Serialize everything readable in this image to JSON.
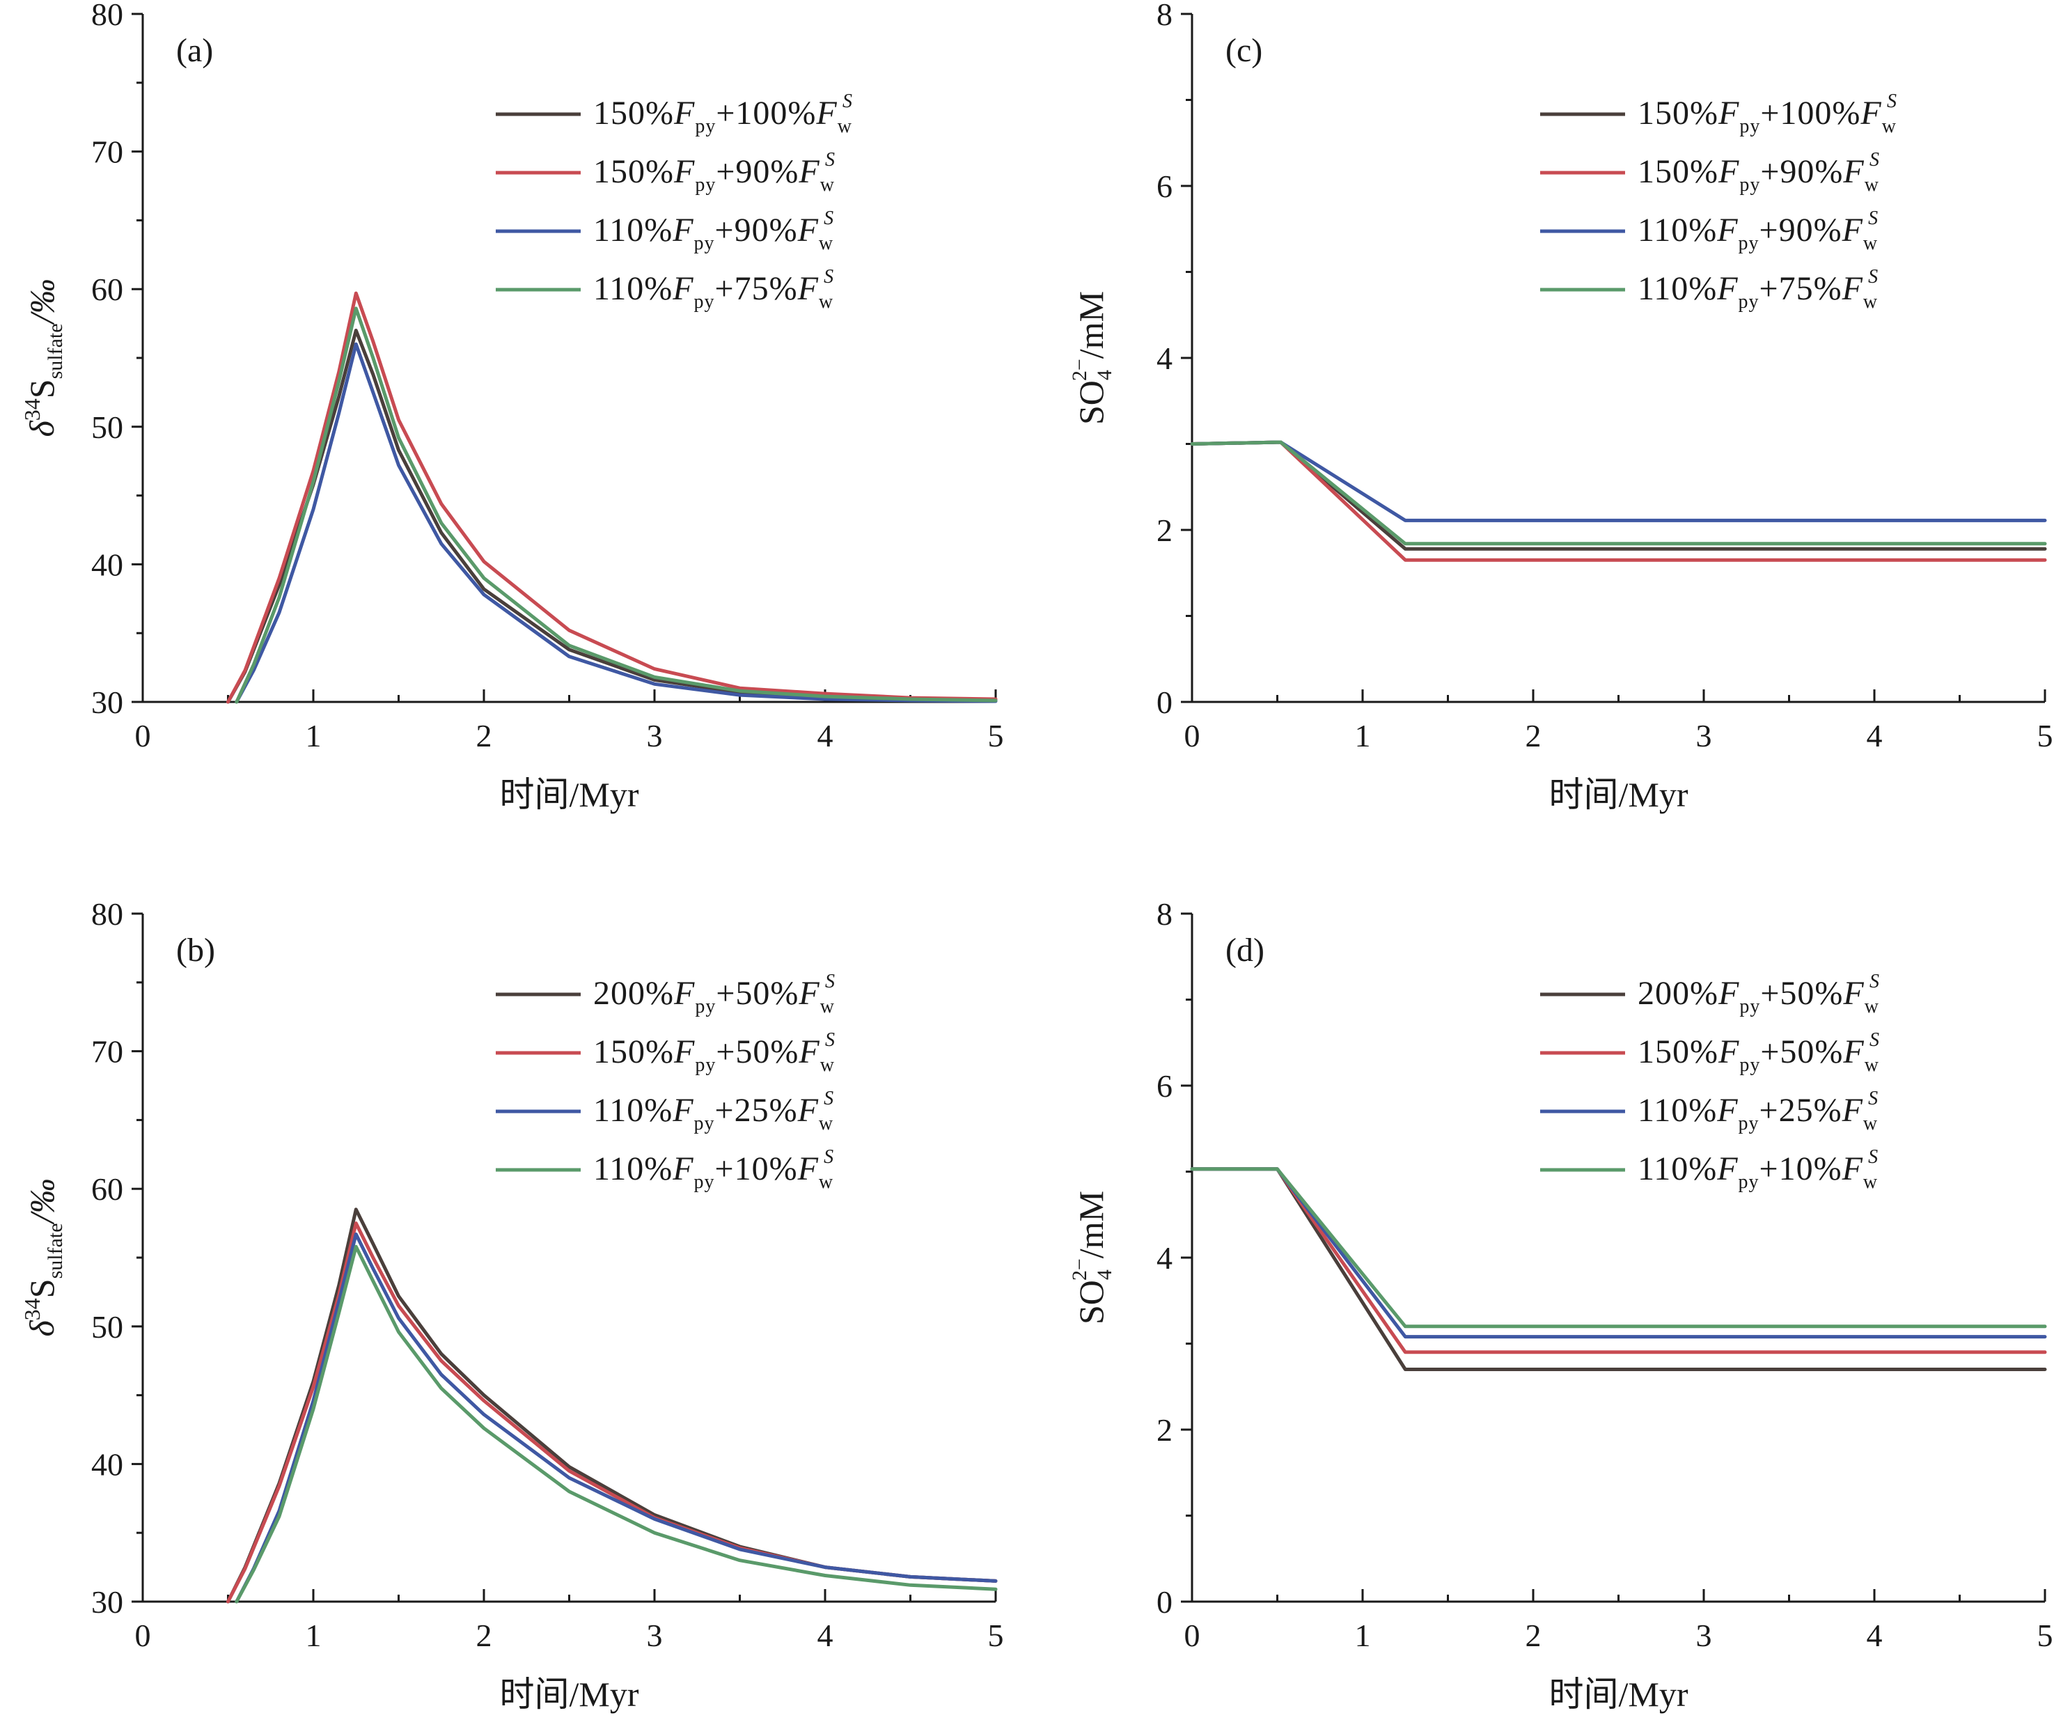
{
  "colors": {
    "black": "#4a3f3b",
    "red": "#c84b52",
    "blue": "#3f58a3",
    "green": "#5a9a6a"
  },
  "chart_data": [
    {
      "id": "a",
      "type": "line",
      "panel_label": "(a)",
      "xlabel": "时间/Myr",
      "ylabel": {
        "base": "δ",
        "sup": "34",
        "main": "S",
        "sub": "sulfate",
        "tail": "/‰"
      },
      "xlim": [
        0,
        5
      ],
      "ylim": [
        30,
        80
      ],
      "xticks": [
        0,
        1,
        2,
        3,
        4,
        5
      ],
      "yticks": [
        30,
        40,
        50,
        60,
        70,
        80
      ],
      "legend_position": "top-right",
      "series": [
        {
          "name": "150%Fpy+100%FwS",
          "legend": {
            "a": "150%",
            "b": "+100%"
          },
          "color": "#4a3f3b",
          "x": [
            0.5,
            0.6,
            0.8,
            1.0,
            1.15,
            1.25,
            1.35,
            1.5,
            1.75,
            2.0,
            2.5,
            3.0,
            3.5,
            4.0,
            4.5,
            5.0
          ],
          "y": [
            30,
            32.2,
            38.5,
            45.8,
            52.2,
            57.0,
            53.8,
            48.3,
            42.3,
            38.2,
            33.8,
            31.6,
            30.7,
            30.3,
            30.15,
            30.1
          ]
        },
        {
          "name": "150%Fpy+90%FwS",
          "legend": {
            "a": "150%",
            "b": "+90%"
          },
          "color": "#c84b52",
          "x": [
            0.5,
            0.6,
            0.8,
            1.0,
            1.15,
            1.25,
            1.35,
            1.5,
            1.75,
            2.0,
            2.5,
            3.0,
            3.5,
            4.0,
            4.5,
            5.0
          ],
          "y": [
            30,
            32.3,
            39.0,
            46.8,
            54.0,
            59.7,
            56.2,
            50.5,
            44.4,
            40.2,
            35.2,
            32.4,
            31.0,
            30.6,
            30.3,
            30.2
          ]
        },
        {
          "name": "110%Fpy+90%FwS",
          "legend": {
            "a": "110%",
            "b": "+90%"
          },
          "color": "#3f58a3",
          "x": [
            0.55,
            0.65,
            0.8,
            1.0,
            1.15,
            1.25,
            1.35,
            1.5,
            1.75,
            2.0,
            2.5,
            3.0,
            3.5,
            4.0,
            4.5,
            5.0
          ],
          "y": [
            30,
            32.3,
            36.5,
            44.0,
            51.0,
            56.0,
            52.5,
            47.2,
            41.5,
            37.8,
            33.3,
            31.3,
            30.5,
            30.2,
            30.1,
            30.05
          ]
        },
        {
          "name": "110%Fpy+75%FwS",
          "legend": {
            "a": "110%",
            "b": "+75%"
          },
          "color": "#5a9a6a",
          "x": [
            0.55,
            0.65,
            0.8,
            1.0,
            1.15,
            1.25,
            1.35,
            1.5,
            1.75,
            2.0,
            2.5,
            3.0,
            3.5,
            4.0,
            4.5,
            5.0
          ],
          "y": [
            30,
            32.7,
            37.6,
            46.0,
            53.3,
            58.6,
            55.0,
            49.2,
            43.0,
            39.0,
            34.1,
            31.8,
            30.8,
            30.4,
            30.2,
            30.1
          ]
        }
      ]
    },
    {
      "id": "b",
      "type": "line",
      "panel_label": "(b)",
      "xlabel": "时间/Myr",
      "ylabel": {
        "base": "δ",
        "sup": "34",
        "main": "S",
        "sub": "sulfate",
        "tail": "/‰"
      },
      "xlim": [
        0,
        5
      ],
      "ylim": [
        30,
        80
      ],
      "xticks": [
        0,
        1,
        2,
        3,
        4,
        5
      ],
      "yticks": [
        30,
        40,
        50,
        60,
        70,
        80
      ],
      "legend_position": "top-right",
      "series": [
        {
          "name": "200%Fpy+50%FwS",
          "legend": {
            "a": "200%",
            "b": "+50%"
          },
          "color": "#4a3f3b",
          "x": [
            0.5,
            0.6,
            0.8,
            1.0,
            1.15,
            1.25,
            1.35,
            1.5,
            1.75,
            2.0,
            2.5,
            3.0,
            3.5,
            4.0,
            4.5,
            5.0
          ],
          "y": [
            30,
            32.5,
            38.6,
            46.0,
            53.0,
            58.5,
            56.0,
            52.2,
            48.0,
            45.0,
            39.8,
            36.3,
            34.0,
            32.5,
            31.8,
            31.5
          ]
        },
        {
          "name": "150%Fpy+50%FwS",
          "legend": {
            "a": "150%",
            "b": "+50%"
          },
          "color": "#c84b52",
          "x": [
            0.5,
            0.6,
            0.8,
            1.0,
            1.15,
            1.25,
            1.35,
            1.5,
            1.75,
            2.0,
            2.5,
            3.0,
            3.5,
            4.0,
            4.5,
            5.0
          ],
          "y": [
            30,
            32.4,
            38.4,
            45.6,
            52.3,
            57.5,
            55.0,
            51.5,
            47.5,
            44.6,
            39.5,
            36.1,
            33.9,
            32.5,
            31.8,
            31.5
          ]
        },
        {
          "name": "110%Fpy+25%FwS",
          "legend": {
            "a": "110%",
            "b": "+25%"
          },
          "color": "#3f58a3",
          "x": [
            0.55,
            0.65,
            0.8,
            1.0,
            1.15,
            1.25,
            1.35,
            1.5,
            1.75,
            2.0,
            2.5,
            3.0,
            3.5,
            4.0,
            4.5,
            5.0
          ],
          "y": [
            30,
            32.4,
            36.6,
            44.6,
            51.8,
            56.7,
            54.2,
            50.6,
            46.5,
            43.6,
            39.0,
            36.0,
            33.8,
            32.5,
            31.8,
            31.5
          ]
        },
        {
          "name": "110%Fpy+10%FwS",
          "legend": {
            "a": "110%",
            "b": "+10%"
          },
          "color": "#5a9a6a",
          "x": [
            0.55,
            0.65,
            0.8,
            1.0,
            1.15,
            1.25,
            1.35,
            1.5,
            1.75,
            2.0,
            2.5,
            3.0,
            3.5,
            4.0,
            4.5,
            5.0
          ],
          "y": [
            30,
            32.3,
            36.2,
            44.0,
            51.0,
            55.8,
            53.3,
            49.6,
            45.5,
            42.6,
            38.0,
            35.0,
            33.0,
            31.9,
            31.2,
            30.9
          ]
        }
      ]
    },
    {
      "id": "c",
      "type": "line",
      "panel_label": "(c)",
      "xlabel": "时间/Myr",
      "ylabel": {
        "main": "SO",
        "sub": "4",
        "sup": "2−",
        "tail": "/mM"
      },
      "xlim": [
        0,
        5
      ],
      "ylim": [
        0,
        8
      ],
      "xticks": [
        0,
        1,
        2,
        3,
        4,
        5
      ],
      "yticks": [
        0,
        2,
        4,
        6,
        8
      ],
      "legend_position": "top-right",
      "series": [
        {
          "name": "150%Fpy+100%FwS",
          "legend": {
            "a": "150%",
            "b": "+100%"
          },
          "color": "#4a3f3b",
          "x": [
            0,
            0.52,
            1.25,
            5
          ],
          "y": [
            3.0,
            3.02,
            1.78,
            1.78
          ]
        },
        {
          "name": "150%Fpy+90%FwS",
          "legend": {
            "a": "150%",
            "b": "+90%"
          },
          "color": "#c84b52",
          "x": [
            0,
            0.52,
            1.25,
            5
          ],
          "y": [
            3.0,
            3.02,
            1.65,
            1.65
          ]
        },
        {
          "name": "110%Fpy+90%FwS",
          "legend": {
            "a": "110%",
            "b": "+90%"
          },
          "color": "#3f58a3",
          "x": [
            0,
            0.52,
            1.25,
            5
          ],
          "y": [
            3.0,
            3.02,
            2.11,
            2.11
          ]
        },
        {
          "name": "110%Fpy+75%FwS",
          "legend": {
            "a": "110%",
            "b": "+75%"
          },
          "color": "#5a9a6a",
          "x": [
            0,
            0.52,
            1.25,
            5
          ],
          "y": [
            3.0,
            3.02,
            1.84,
            1.84
          ]
        }
      ]
    },
    {
      "id": "d",
      "type": "line",
      "panel_label": "(d)",
      "xlabel": "时间/Myr",
      "ylabel": {
        "main": "SO",
        "sub": "4",
        "sup": "2−",
        "tail": "/mM"
      },
      "xlim": [
        0,
        5
      ],
      "ylim": [
        0,
        8
      ],
      "xticks": [
        0,
        1,
        2,
        3,
        4,
        5
      ],
      "yticks": [
        0,
        2,
        4,
        6,
        8
      ],
      "legend_position": "top-right",
      "series": [
        {
          "name": "200%Fpy+50%FwS",
          "legend": {
            "a": "200%",
            "b": "+50%"
          },
          "color": "#4a3f3b",
          "x": [
            0,
            0.5,
            1.25,
            5
          ],
          "y": [
            5.03,
            5.03,
            2.7,
            2.7
          ]
        },
        {
          "name": "150%Fpy+50%FwS",
          "legend": {
            "a": "150%",
            "b": "+50%"
          },
          "color": "#c84b52",
          "x": [
            0,
            0.5,
            1.25,
            5
          ],
          "y": [
            5.03,
            5.03,
            2.9,
            2.9
          ]
        },
        {
          "name": "110%Fpy+25%FwS",
          "legend": {
            "a": "110%",
            "b": "+25%"
          },
          "color": "#3f58a3",
          "x": [
            0,
            0.5,
            1.25,
            5
          ],
          "y": [
            5.03,
            5.03,
            3.08,
            3.08
          ]
        },
        {
          "name": "110%Fpy+10%FwS",
          "legend": {
            "a": "110%",
            "b": "+10%"
          },
          "color": "#5a9a6a",
          "x": [
            0,
            0.5,
            1.25,
            5
          ],
          "y": [
            5.03,
            5.03,
            3.2,
            3.2
          ]
        }
      ]
    }
  ],
  "legend_symbols": {
    "F": "F",
    "py": "py",
    "S": "S",
    "w": "w"
  }
}
